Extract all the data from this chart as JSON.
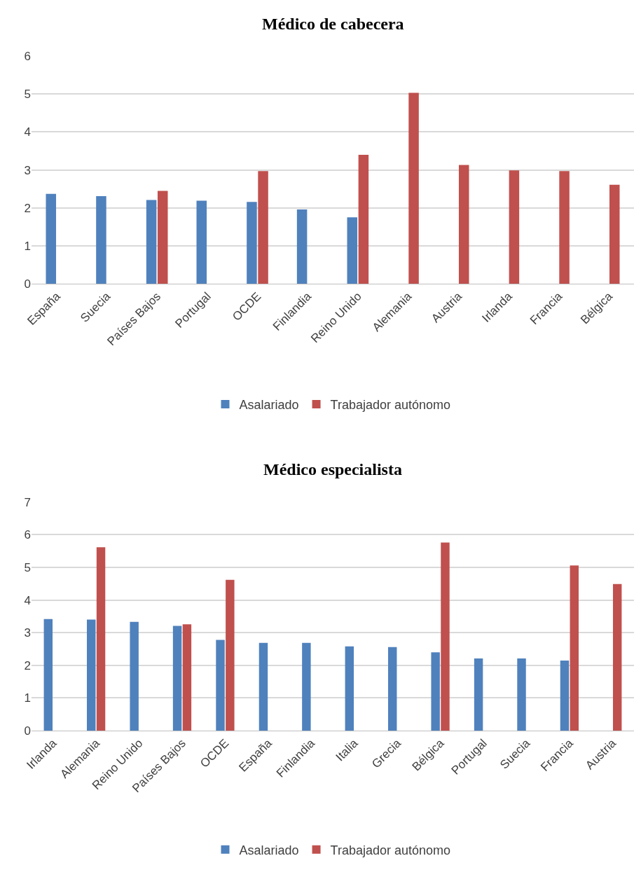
{
  "chart_data": [
    {
      "type": "bar",
      "title": "Médico de cabecera",
      "categories": [
        "España",
        "Suecia",
        "Países Bajos",
        "Portugal",
        "OCDE",
        "Finlandia",
        "Reino Unido",
        "Alemania",
        "Austria",
        "Irlanda",
        "Francia",
        "Bélgica"
      ],
      "series": [
        {
          "name": "Asalariado",
          "color": "#4f81bd",
          "values": [
            2.37,
            2.31,
            2.21,
            2.19,
            2.16,
            1.96,
            1.75,
            null,
            null,
            null,
            null,
            null
          ]
        },
        {
          "name": "Trabajador autónomo",
          "color": "#c0504d",
          "values": [
            null,
            null,
            2.45,
            null,
            2.97,
            null,
            3.4,
            5.03,
            3.13,
            2.99,
            2.97,
            2.61
          ]
        }
      ],
      "ylim": [
        0,
        6
      ],
      "yticks": [
        0,
        1,
        2,
        3,
        4,
        5,
        6
      ],
      "grid": "y",
      "legend": "bottom"
    },
    {
      "type": "bar",
      "title": "Médico especialista",
      "categories": [
        "Irlanda",
        "Alemania",
        "Reino Unido",
        "Países Bajos",
        "OCDE",
        "España",
        "Finlandia",
        "Italia",
        "Grecia",
        "Bélgica",
        "Portugal",
        "Suecia",
        "Francia",
        "Austria"
      ],
      "series": [
        {
          "name": "Asalariado",
          "color": "#4f81bd",
          "values": [
            3.42,
            3.4,
            3.33,
            3.21,
            2.78,
            2.69,
            2.69,
            2.58,
            2.56,
            2.4,
            2.21,
            2.21,
            2.15,
            null
          ]
        },
        {
          "name": "Trabajador autónomo",
          "color": "#c0504d",
          "values": [
            null,
            5.62,
            null,
            3.26,
            4.62,
            null,
            null,
            null,
            null,
            5.76,
            null,
            null,
            5.06,
            4.49
          ]
        }
      ],
      "ylim": [
        0,
        7
      ],
      "yticks": [
        0,
        1,
        2,
        3,
        4,
        5,
        6,
        7
      ],
      "grid": "y",
      "legend": "bottom"
    }
  ]
}
